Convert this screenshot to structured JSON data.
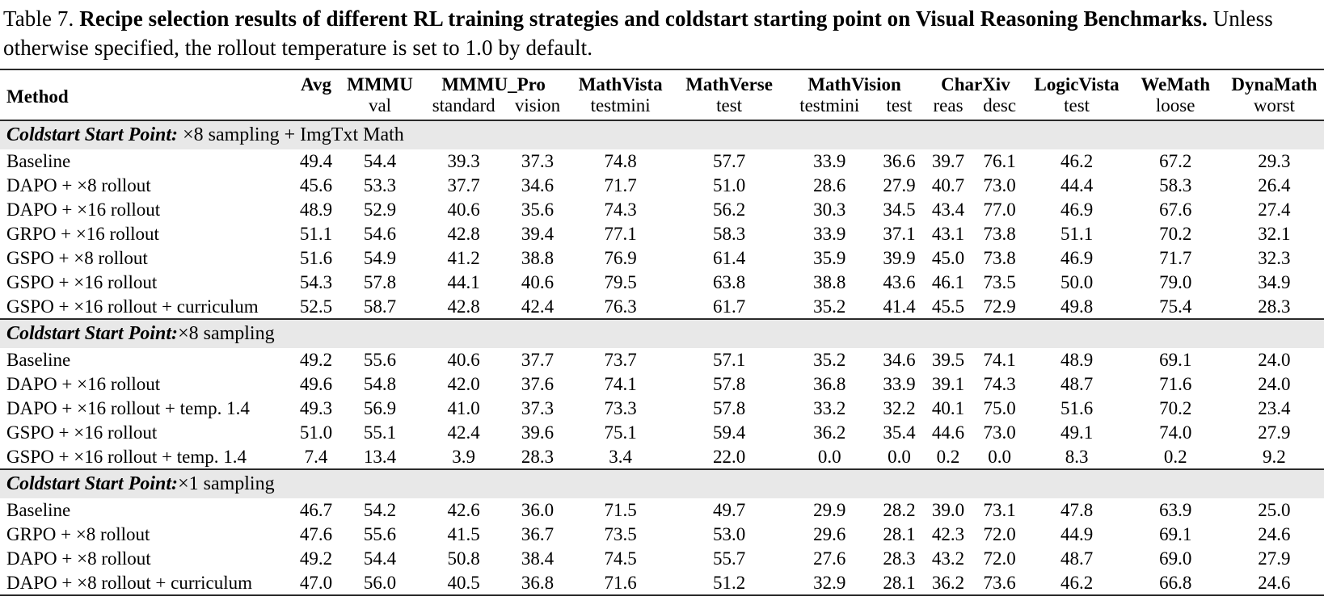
{
  "caption": {
    "prefix": "Table 7.",
    "bold": "Recipe selection results of different RL training strategies and coldstart starting point on Visual Reasoning Benchmarks.",
    "rest": "Unless otherwise specified, the rollout temperature is set to 1.0 by default."
  },
  "table": {
    "method_header": "Method",
    "groups": [
      {
        "label": "Avg",
        "subs": [
          ""
        ]
      },
      {
        "label": "MMMU",
        "subs": [
          "val"
        ]
      },
      {
        "label": "MMMU_Pro",
        "subs": [
          "standard",
          "vision"
        ]
      },
      {
        "label": "MathVista",
        "subs": [
          "testmini"
        ]
      },
      {
        "label": "MathVerse",
        "subs": [
          "test"
        ]
      },
      {
        "label": "MathVision",
        "subs": [
          "testmini",
          "test"
        ]
      },
      {
        "label": "CharXiv",
        "subs": [
          "reas",
          "desc"
        ]
      },
      {
        "label": "LogicVista",
        "subs": [
          "test"
        ]
      },
      {
        "label": "WeMath",
        "subs": [
          "loose"
        ]
      },
      {
        "label": "DynaMath",
        "subs": [
          "worst"
        ]
      }
    ],
    "sections": [
      {
        "title_bold": "Coldstart Start Point:",
        "title_rest": " ×8 sampling + ImgTxt Math",
        "rows": [
          {
            "method": "Baseline",
            "values": [
              "49.4",
              "54.4",
              "39.3",
              "37.3",
              "74.8",
              "57.7",
              "33.9",
              "36.6",
              "39.7",
              "76.1",
              "46.2",
              "67.2",
              "29.3"
            ]
          },
          {
            "method": "DAPO + ×8 rollout",
            "values": [
              "45.6",
              "53.3",
              "37.7",
              "34.6",
              "71.7",
              "51.0",
              "28.6",
              "27.9",
              "40.7",
              "73.0",
              "44.4",
              "58.3",
              "26.4"
            ]
          },
          {
            "method": "DAPO + ×16 rollout",
            "values": [
              "48.9",
              "52.9",
              "40.6",
              "35.6",
              "74.3",
              "56.2",
              "30.3",
              "34.5",
              "43.4",
              "77.0",
              "46.9",
              "67.6",
              "27.4"
            ]
          },
          {
            "method": "GRPO + ×16 rollout",
            "values": [
              "51.1",
              "54.6",
              "42.8",
              "39.4",
              "77.1",
              "58.3",
              "33.9",
              "37.1",
              "43.1",
              "73.8",
              "51.1",
              "70.2",
              "32.1"
            ]
          },
          {
            "method": "GSPO + ×8 rollout",
            "values": [
              "51.6",
              "54.9",
              "41.2",
              "38.8",
              "76.9",
              "61.4",
              "35.9",
              "39.9",
              "45.0",
              "73.8",
              "46.9",
              "71.7",
              "32.3"
            ]
          },
          {
            "method": "GSPO + ×16 rollout",
            "values": [
              "54.3",
              "57.8",
              "44.1",
              "40.6",
              "79.5",
              "63.8",
              "38.8",
              "43.6",
              "46.1",
              "73.5",
              "50.0",
              "79.0",
              "34.9"
            ]
          },
          {
            "method": "GSPO + ×16 rollout + curriculum",
            "values": [
              "52.5",
              "58.7",
              "42.8",
              "42.4",
              "76.3",
              "61.7",
              "35.2",
              "41.4",
              "45.5",
              "72.9",
              "49.8",
              "75.4",
              "28.3"
            ]
          }
        ]
      },
      {
        "title_bold": "Coldstart Start Point:",
        "title_rest": "×8 sampling",
        "rows": [
          {
            "method": "Baseline",
            "values": [
              "49.2",
              "55.6",
              "40.6",
              "37.7",
              "73.7",
              "57.1",
              "35.2",
              "34.6",
              "39.5",
              "74.1",
              "48.9",
              "69.1",
              "24.0"
            ]
          },
          {
            "method": "DAPO + ×16 rollout",
            "values": [
              "49.6",
              "54.8",
              "42.0",
              "37.6",
              "74.1",
              "57.8",
              "36.8",
              "33.9",
              "39.1",
              "74.3",
              "48.7",
              "71.6",
              "24.0"
            ]
          },
          {
            "method": "DAPO + ×16 rollout + temp. 1.4",
            "values": [
              "49.3",
              "56.9",
              "41.0",
              "37.3",
              "73.3",
              "57.8",
              "33.2",
              "32.2",
              "40.1",
              "75.0",
              "51.6",
              "70.2",
              "23.4"
            ]
          },
          {
            "method": "GSPO + ×16 rollout",
            "values": [
              "51.0",
              "55.1",
              "42.4",
              "39.6",
              "75.1",
              "59.4",
              "36.2",
              "35.4",
              "44.6",
              "73.0",
              "49.1",
              "74.0",
              "27.9"
            ]
          },
          {
            "method": "GSPO + ×16 rollout + temp. 1.4",
            "values": [
              "7.4",
              "13.4",
              "3.9",
              "28.3",
              "3.4",
              "22.0",
              "0.0",
              "0.0",
              "0.2",
              "0.0",
              "8.3",
              "0.2",
              "9.2"
            ]
          }
        ]
      },
      {
        "title_bold": "Coldstart Start Point:",
        "title_rest": "×1 sampling",
        "rows": [
          {
            "method": "Baseline",
            "values": [
              "46.7",
              "54.2",
              "42.6",
              "36.0",
              "71.5",
              "49.7",
              "29.9",
              "28.2",
              "39.0",
              "73.1",
              "47.8",
              "63.9",
              "25.0"
            ]
          },
          {
            "method": "GRPO + ×8 rollout",
            "values": [
              "47.6",
              "55.6",
              "41.5",
              "36.7",
              "73.5",
              "53.0",
              "29.6",
              "28.1",
              "42.3",
              "72.0",
              "44.9",
              "69.1",
              "24.6"
            ]
          },
          {
            "method": "DAPO + ×8 rollout",
            "values": [
              "49.2",
              "54.4",
              "50.8",
              "38.4",
              "74.5",
              "55.7",
              "27.6",
              "28.3",
              "43.2",
              "72.0",
              "48.7",
              "69.0",
              "27.9"
            ]
          },
          {
            "method": "DAPO + ×8 rollout + curriculum",
            "values": [
              "47.0",
              "56.0",
              "40.5",
              "36.8",
              "71.6",
              "51.2",
              "32.9",
              "28.1",
              "36.2",
              "73.6",
              "46.2",
              "66.8",
              "24.6"
            ]
          }
        ]
      }
    ]
  }
}
